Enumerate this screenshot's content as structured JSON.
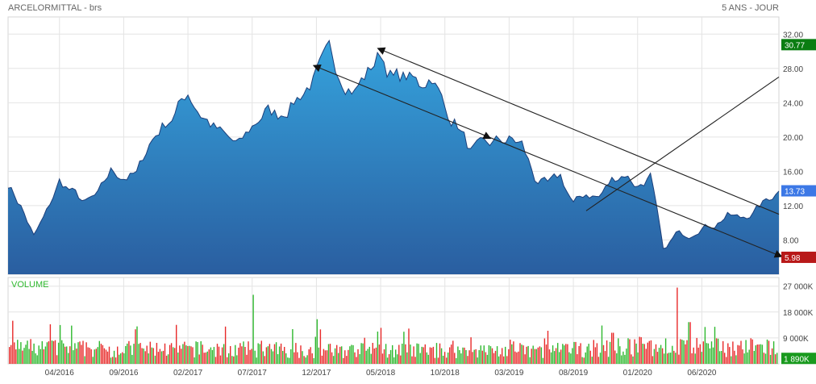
{
  "header": {
    "title": "ARCELORMITTAL - brs",
    "period": "5 ANS - JOUR"
  },
  "volume_label": "VOLUME",
  "colors": {
    "area_top": "#35a3dd",
    "area_bottom": "#2a5ea0",
    "line": "#1c3f7a",
    "grid": "#e4e4e4",
    "badge_high": "#0a7d12",
    "badge_last": "#3c78e6",
    "badge_low": "#b81818",
    "badge_volume": "#199a1e",
    "volume_up": "#2eb82e",
    "volume_down": "#e82a2a",
    "volume_label": "#2eb82e",
    "trendline": "#222222"
  },
  "chart_data": [
    {
      "type": "area",
      "name": "price",
      "x_ticks": [
        "04/2016",
        "09/2016",
        "02/2017",
        "07/2017",
        "12/2017",
        "05/2018",
        "10/2018",
        "03/2019",
        "08/2019",
        "01/2020",
        "06/2020"
      ],
      "y_ticks": [
        "32.00",
        "28.00",
        "24.00",
        "20.00",
        "16.00",
        "12.00",
        "8.00"
      ],
      "ylim": [
        4.0,
        34.0
      ],
      "x_range": [
        "2015-12",
        "2020-12"
      ],
      "grid": true,
      "markers": [
        {
          "label": "30.77",
          "value": 30.77,
          "kind": "high"
        },
        {
          "label": "13.73",
          "value": 13.73,
          "kind": "last"
        },
        {
          "label": "5.98",
          "value": 5.98,
          "kind": "low"
        }
      ],
      "points": [
        [
          "2015-12",
          14.6
        ],
        [
          "2016-01",
          12.0
        ],
        [
          "2016-02",
          8.4
        ],
        [
          "2016-03",
          11.2
        ],
        [
          "2016-04",
          14.8
        ],
        [
          "2016-05",
          13.6
        ],
        [
          "2016-06",
          12.3
        ],
        [
          "2016-07",
          13.2
        ],
        [
          "2016-08",
          16.0
        ],
        [
          "2016-09",
          15.4
        ],
        [
          "2016-10",
          15.6
        ],
        [
          "2016-11",
          19.3
        ],
        [
          "2016-12",
          21.3
        ],
        [
          "2017-01",
          22.8
        ],
        [
          "2017-02",
          25.3
        ],
        [
          "2017-03",
          22.8
        ],
        [
          "2017-04",
          21.2
        ],
        [
          "2017-05",
          19.8
        ],
        [
          "2017-06",
          19.0
        ],
        [
          "2017-07",
          21.2
        ],
        [
          "2017-08",
          23.0
        ],
        [
          "2017-09",
          22.6
        ],
        [
          "2017-10",
          23.8
        ],
        [
          "2017-11",
          25.4
        ],
        [
          "2017-12",
          27.1
        ],
        [
          "2018-01",
          29.6
        ],
        [
          "2018-02",
          27.2
        ],
        [
          "2018-03",
          25.6
        ],
        [
          "2018-04",
          27.5
        ],
        [
          "2018-05",
          29.8
        ],
        [
          "2018-06",
          26.8
        ],
        [
          "2018-07",
          27.0
        ],
        [
          "2018-08",
          26.0
        ],
        [
          "2018-09",
          27.4
        ],
        [
          "2018-10",
          23.2
        ],
        [
          "2018-11",
          21.5
        ],
        [
          "2018-12",
          18.3
        ],
        [
          "2019-01",
          18.8
        ],
        [
          "2019-02",
          19.4
        ],
        [
          "2019-03",
          19.7
        ],
        [
          "2019-04",
          19.1
        ],
        [
          "2019-05",
          15.2
        ],
        [
          "2019-06",
          14.3
        ],
        [
          "2019-07",
          15.4
        ],
        [
          "2019-08",
          12.2
        ],
        [
          "2019-09",
          13.4
        ],
        [
          "2019-10",
          13.0
        ],
        [
          "2019-11",
          15.0
        ],
        [
          "2019-12",
          15.8
        ],
        [
          "2020-01",
          14.3
        ],
        [
          "2020-02",
          15.4
        ],
        [
          "2020-03",
          6.6
        ],
        [
          "2020-04",
          8.7
        ],
        [
          "2020-05",
          8.6
        ],
        [
          "2020-06",
          9.6
        ],
        [
          "2020-07",
          9.8
        ],
        [
          "2020-08",
          10.9
        ],
        [
          "2020-09",
          10.5
        ],
        [
          "2020-10",
          11.2
        ],
        [
          "2020-11",
          12.6
        ],
        [
          "2020-12",
          13.7
        ]
      ],
      "trendlines": [
        {
          "start": [
            "2018-05",
            30.2
          ],
          "end": [
            "2020-12",
            11.0
          ],
          "arrow": "start"
        },
        {
          "start": [
            "2017-12",
            28.2
          ],
          "end": [
            "2020-12",
            6.2
          ],
          "arrow": "both_and_mid"
        },
        {
          "start": [
            "2019-09",
            11.4
          ],
          "end": [
            "2020-12",
            27.0
          ],
          "arrow": "none"
        }
      ]
    },
    {
      "type": "bar",
      "name": "volume",
      "y_ticks": [
        "27 000K",
        "18 000K",
        "9 000K"
      ],
      "ylim": [
        0,
        30000
      ],
      "unit": "K",
      "marker": {
        "label": "1 890K",
        "value": 1890
      },
      "points_monthly_avg": [
        [
          "2016-01",
          5200
        ],
        [
          "2016-07",
          4800
        ],
        [
          "2017-01",
          4700
        ],
        [
          "2017-07",
          4600
        ],
        [
          "2018-01",
          4300
        ],
        [
          "2018-07",
          4400
        ],
        [
          "2019-01",
          4200
        ],
        [
          "2019-07",
          4400
        ],
        [
          "2020-01",
          5600
        ],
        [
          "2020-07",
          5300
        ]
      ],
      "spikes": [
        [
          "2016-04",
          13500
        ],
        [
          "2016-10",
          13000
        ],
        [
          "2017-07",
          24000
        ],
        [
          "2017-12",
          15500
        ],
        [
          "2018-05",
          12500
        ],
        [
          "2019-06",
          11500
        ],
        [
          "2019-11",
          10800
        ],
        [
          "2020-04",
          26500
        ],
        [
          "2020-05",
          14500
        ]
      ]
    }
  ]
}
